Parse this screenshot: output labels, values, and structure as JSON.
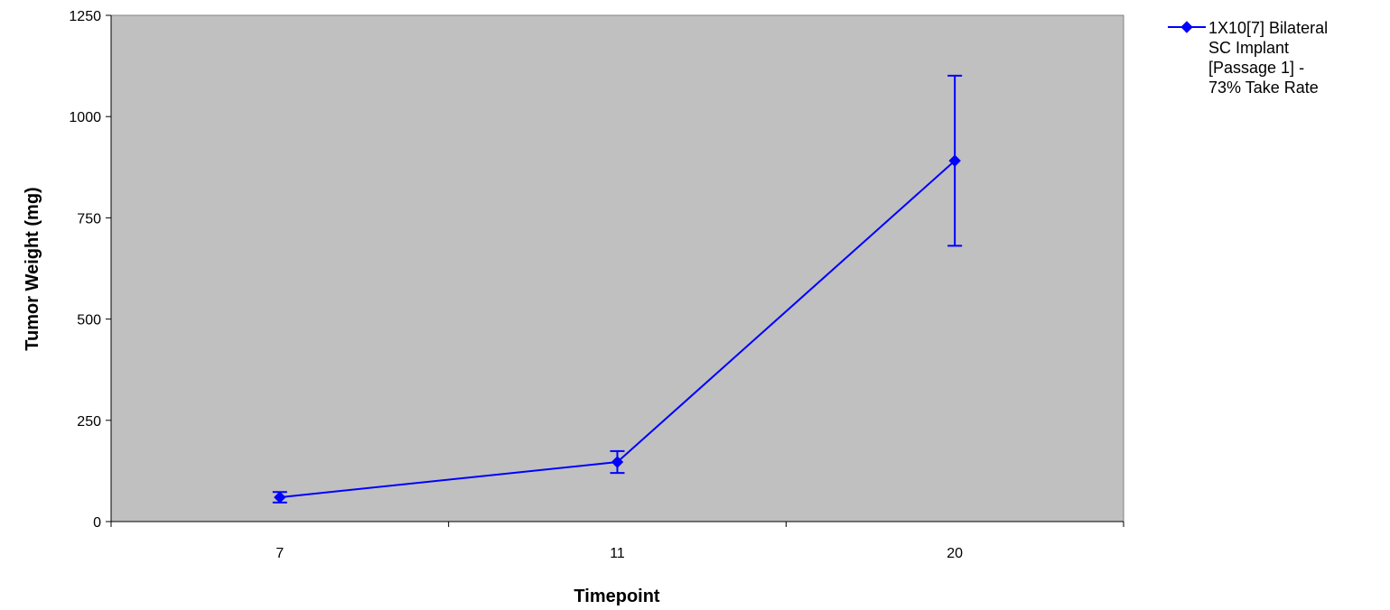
{
  "chart_data": {
    "type": "line",
    "title": "",
    "xlabel": "Timepoint",
    "ylabel": "Tumor Weight (mg)",
    "categories": [
      "7",
      "11",
      "20"
    ],
    "ylim": [
      0,
      1250
    ],
    "yticks": [
      0,
      250,
      500,
      750,
      1000,
      1250
    ],
    "grid": false,
    "plot_background": "#c0c0c0",
    "legend_position": "right",
    "series": [
      {
        "name": "1X10[7] Bilateral SC Implant [Passage 1] - 73% Take Rate",
        "legend_lines": [
          "1X10[7] Bilateral",
          "SC Implant",
          "[Passage 1] -",
          "73% Take Rate"
        ],
        "color": "#0000ff",
        "marker": "diamond",
        "values": [
          60,
          147,
          891
        ],
        "error": [
          13,
          27,
          210
        ]
      }
    ]
  }
}
